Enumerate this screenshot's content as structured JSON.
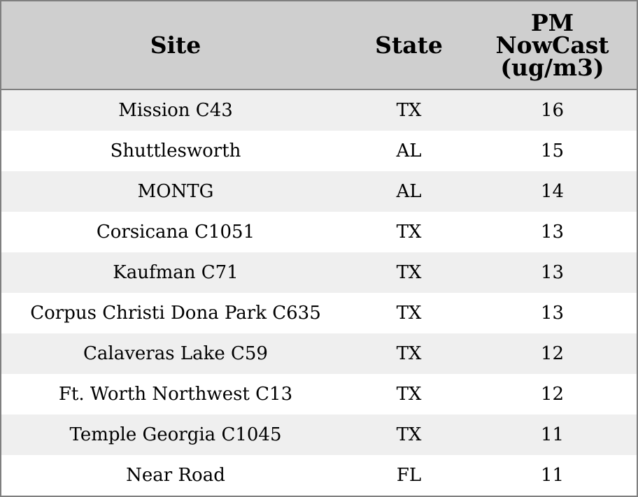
{
  "chart_data": {
    "type": "table",
    "columns": [
      "Site",
      "State",
      "PM NowCast (ug/m3)"
    ],
    "header_lines": [
      [
        "Site"
      ],
      [
        "State"
      ],
      [
        "PM",
        "NowCast",
        "(ug/m3)"
      ]
    ],
    "rows": [
      [
        "Mission C43",
        "TX",
        "16"
      ],
      [
        "Shuttlesworth",
        "AL",
        "15"
      ],
      [
        "MONTG",
        "AL",
        "14"
      ],
      [
        "Corsicana C1051",
        "TX",
        "13"
      ],
      [
        "Kaufman C71",
        "TX",
        "13"
      ],
      [
        "Corpus Christi Dona Park C635",
        "TX",
        "13"
      ],
      [
        "Calaveras Lake C59",
        "TX",
        "12"
      ],
      [
        "Ft. Worth Northwest C13",
        "TX",
        "12"
      ],
      [
        "Temple Georgia C1045",
        "TX",
        "11"
      ],
      [
        "Near Road",
        "FL",
        "11"
      ]
    ],
    "colors": {
      "header_background": "#cfcfcf",
      "row_stripe": "#efefef",
      "border": "#7f7f7f"
    }
  }
}
